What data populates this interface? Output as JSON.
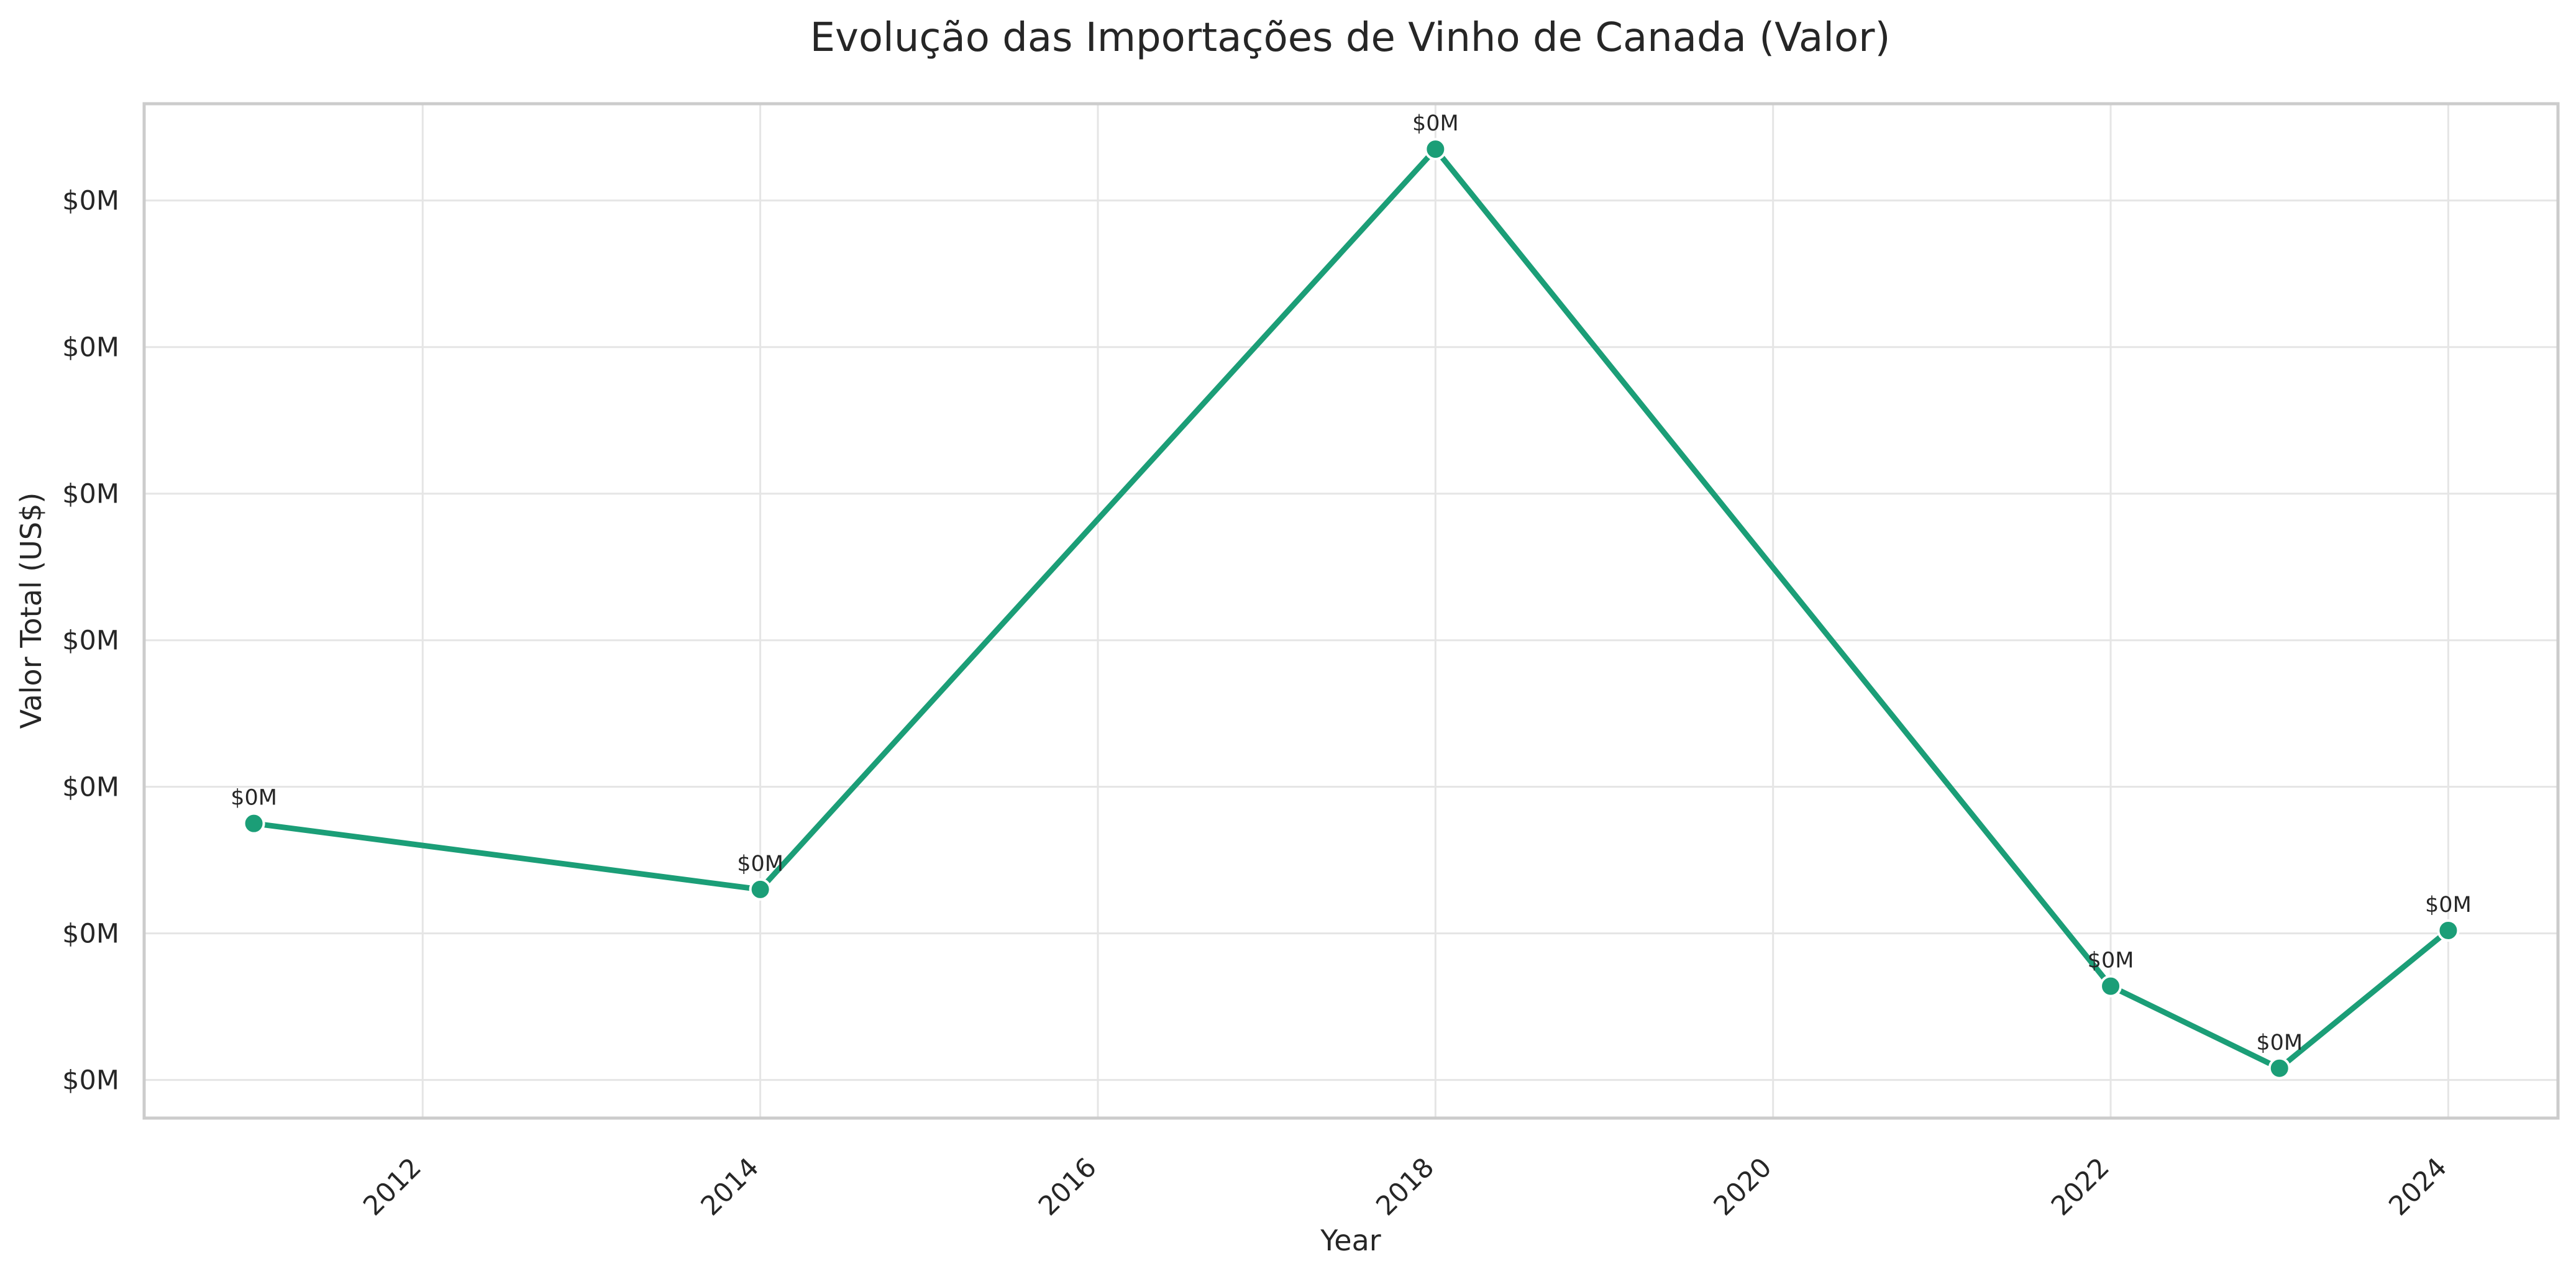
{
  "chart_data": {
    "type": "line",
    "title": "Evolução das Importações de Vinho de Canada (Valor)",
    "xlabel": "Year",
    "ylabel": "Valor Total (US$)",
    "xlim": [
      2010.35,
      2024.65
    ],
    "ylim": [
      17400,
      86600
    ],
    "x_ticks": [
      2012,
      2014,
      2016,
      2018,
      2020,
      2022,
      2024
    ],
    "y_ticks": [
      20000,
      30000,
      40000,
      50000,
      60000,
      70000,
      80000
    ],
    "y_tick_label": "$0M",
    "grid": true,
    "colors": {
      "line": "#1b9e77"
    },
    "series": [
      {
        "x": [
          2011,
          2014,
          2018,
          2022,
          2023,
          2024
        ],
        "y": [
          37500,
          33000,
          83500,
          26400,
          20800,
          30200
        ],
        "labels": [
          "$0M",
          "$0M",
          "$0M",
          "$0M",
          "$0M",
          "$0M"
        ]
      }
    ]
  }
}
